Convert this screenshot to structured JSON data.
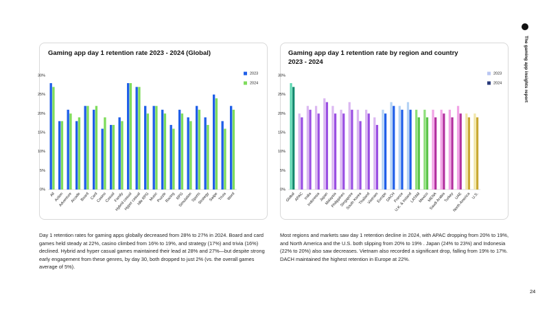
{
  "side_label": "The gaming app insights report",
  "page_number": "24",
  "paragraphs": [
    "Day 1 retention rates for gaming apps globally decreased from 28% to 27% in 2024. Board and card games held steady at 22%, casino climbed from 16% to 19%, and strategy (17%) and trivia (16%) declined. Hybrid and hyper casual games maintained their lead at 28% and 27%—but despite strong early engagement from these genres, by day 30, both dropped to just 2% (vs. the overall games average of 5%).",
    "Most regions and markets saw day 1 retention decline in 2024, with APAC dropping from 20% to 19%, and North America and the U.S. both slipping from 20% to 19% . Japan (24% to 23%) and Indonesia (22% to 20%) also saw decreases. Vietnam also recorded a significant drop, falling from 19% to 17%. DACH maintained the highest retention in Europe at 22%."
  ],
  "chart_data": [
    {
      "type": "bar",
      "title": "Gaming app day 1 retention rate 2023 - 2024 (Global)",
      "categories": [
        "All",
        "Action",
        "Adventure",
        "Arcade",
        "Board",
        "Card",
        "Casino",
        "Casual",
        "Family",
        "Hybrid casual",
        "Hyper casual",
        "Idle RPG",
        "Music",
        "Puzzle",
        "Racing",
        "RPG",
        "Simulation",
        "Sports",
        "Strategy",
        "Swipe",
        "Trivia",
        "Word"
      ],
      "series": [
        {
          "name": "2023",
          "color": "#1f5fe8",
          "values": [
            28,
            18,
            21,
            18,
            22,
            21,
            16,
            17,
            19,
            28,
            27,
            22,
            22,
            21,
            17,
            21,
            19,
            22,
            19,
            25,
            18,
            22
          ]
        },
        {
          "name": "2024",
          "color": "#7fdc5c",
          "values": [
            27,
            18,
            20,
            19,
            22,
            22,
            19,
            17,
            18,
            28,
            27,
            20,
            22,
            20,
            16,
            20,
            18,
            21,
            17,
            24,
            16,
            21
          ]
        }
      ],
      "ylim": [
        0,
        30
      ],
      "yticks": [
        {
          "value": 0,
          "label": "0%"
        },
        {
          "value": 5,
          "label": "5%"
        },
        {
          "value": 10,
          "label": "10%"
        },
        {
          "value": 15,
          "label": "15%"
        },
        {
          "value": 20,
          "label": "20%"
        },
        {
          "value": 25,
          "label": "25%"
        },
        {
          "value": 30,
          "label": "30%"
        }
      ],
      "grid": false,
      "legend": "top-right"
    },
    {
      "type": "bar",
      "title": "Gaming app day 1 retention rate by region and country 2023 - 2024",
      "categories": [
        "Global",
        "APAC",
        "India",
        "Indonesia",
        "Japan",
        "Malaysia",
        "Philippines",
        "Singapore",
        "South Korea",
        "Thailand",
        "Vietnam",
        "Europe",
        "DACH",
        "France",
        "U.K. & Ireland",
        "LATAM",
        "Mexico",
        "MENA",
        "Saudi Arabia",
        "Turkey",
        "UAE",
        "North America",
        "U.S."
      ],
      "series": [
        {
          "name": "2023",
          "color": "#b9c6f2",
          "values": [
            28,
            20,
            22,
            22,
            24,
            22,
            21,
            23,
            21,
            21,
            19,
            21,
            23,
            22,
            23,
            21,
            21,
            21,
            21,
            21,
            22,
            20,
            20
          ],
          "colors": [
            "#5ed8b2",
            "#dbb8f2",
            "#dbb8f2",
            "#dbb8f2",
            "#dbb8f2",
            "#dbb8f2",
            "#dbb8f2",
            "#dbb8f2",
            "#dbb8f2",
            "#dbb8f2",
            "#dbb8f2",
            "#b5d3f5",
            "#b5d3f5",
            "#b5d3f5",
            "#b5d3f5",
            "#8ee07a",
            "#8ee07a",
            "#f2a3e6",
            "#f2a3e6",
            "#f2a3e6",
            "#f2a3e6",
            "#f1e6a8",
            "#f1e6a8"
          ]
        },
        {
          "name": "2024",
          "color": "#283a7a",
          "values": [
            27,
            19,
            21,
            20,
            23,
            20,
            20,
            21,
            18,
            20,
            17,
            20,
            22,
            21,
            21,
            19,
            19,
            19,
            20,
            19,
            20,
            19,
            19
          ],
          "colors": [
            "#138a6e",
            "#9a4fe2",
            "#9a4fe2",
            "#9a4fe2",
            "#9a4fe2",
            "#9a4fe2",
            "#9a4fe2",
            "#9a4fe2",
            "#9a4fe2",
            "#9a4fe2",
            "#9a4fe2",
            "#1f5fe8",
            "#1f5fe8",
            "#1f5fe8",
            "#1f5fe8",
            "#5cc44a",
            "#5cc44a",
            "#b3309f",
            "#b3309f",
            "#b3309f",
            "#b3309f",
            "#c9a935",
            "#c9a935"
          ]
        }
      ],
      "ylim": [
        0,
        30
      ],
      "yticks": [
        {
          "value": 0,
          "label": "0%"
        },
        {
          "value": 5,
          "label": "5%"
        },
        {
          "value": 10,
          "label": "10%"
        },
        {
          "value": 15,
          "label": "15%"
        },
        {
          "value": 20,
          "label": "20%"
        },
        {
          "value": 25,
          "label": "25%"
        },
        {
          "value": 30,
          "label": "30%"
        }
      ],
      "grid": false,
      "legend": "top-right"
    }
  ]
}
